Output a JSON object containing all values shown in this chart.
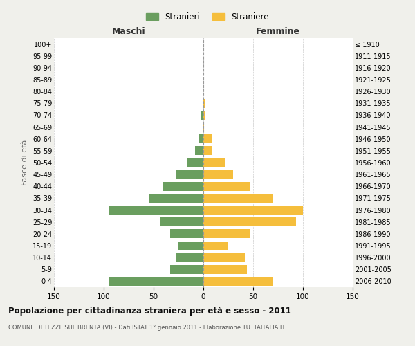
{
  "age_groups_bottom_to_top": [
    "0-4",
    "5-9",
    "10-14",
    "15-19",
    "20-24",
    "25-29",
    "30-34",
    "35-39",
    "40-44",
    "45-49",
    "50-54",
    "55-59",
    "60-64",
    "65-69",
    "70-74",
    "75-79",
    "80-84",
    "85-89",
    "90-94",
    "95-99",
    "100+"
  ],
  "birth_years_bottom_to_top": [
    "2006-2010",
    "2001-2005",
    "1996-2000",
    "1991-1995",
    "1986-1990",
    "1981-1985",
    "1976-1980",
    "1971-1975",
    "1966-1970",
    "1961-1965",
    "1956-1960",
    "1951-1955",
    "1946-1950",
    "1941-1945",
    "1936-1940",
    "1931-1935",
    "1926-1930",
    "1921-1925",
    "1916-1920",
    "1911-1915",
    "≤ 1910"
  ],
  "maschi_bottom_to_top": [
    95,
    33,
    28,
    26,
    33,
    43,
    95,
    55,
    40,
    28,
    17,
    8,
    5,
    1,
    2,
    1,
    0,
    0,
    0,
    0,
    0
  ],
  "femmine_bottom_to_top": [
    70,
    44,
    42,
    25,
    47,
    93,
    100,
    70,
    47,
    30,
    22,
    8,
    8,
    1,
    2,
    2,
    0,
    0,
    0,
    0,
    0
  ],
  "color_maschi": "#6a9e5f",
  "color_femmine": "#f5be3c",
  "background_color": "#f0f0eb",
  "plot_bg_color": "#ffffff",
  "title": "Popolazione per cittadinanza straniera per età e sesso - 2011",
  "subtitle": "COMUNE DI TEZZE SUL BRENTA (VI) - Dati ISTAT 1° gennaio 2011 - Elaborazione TUTTAITALIA.IT",
  "ylabel_left": "Fasce di età",
  "xlabel_left": "Maschi",
  "xlabel_right": "Femmine",
  "legend_maschi": "Stranieri",
  "legend_femmine": "Straniere",
  "xlim": 150
}
